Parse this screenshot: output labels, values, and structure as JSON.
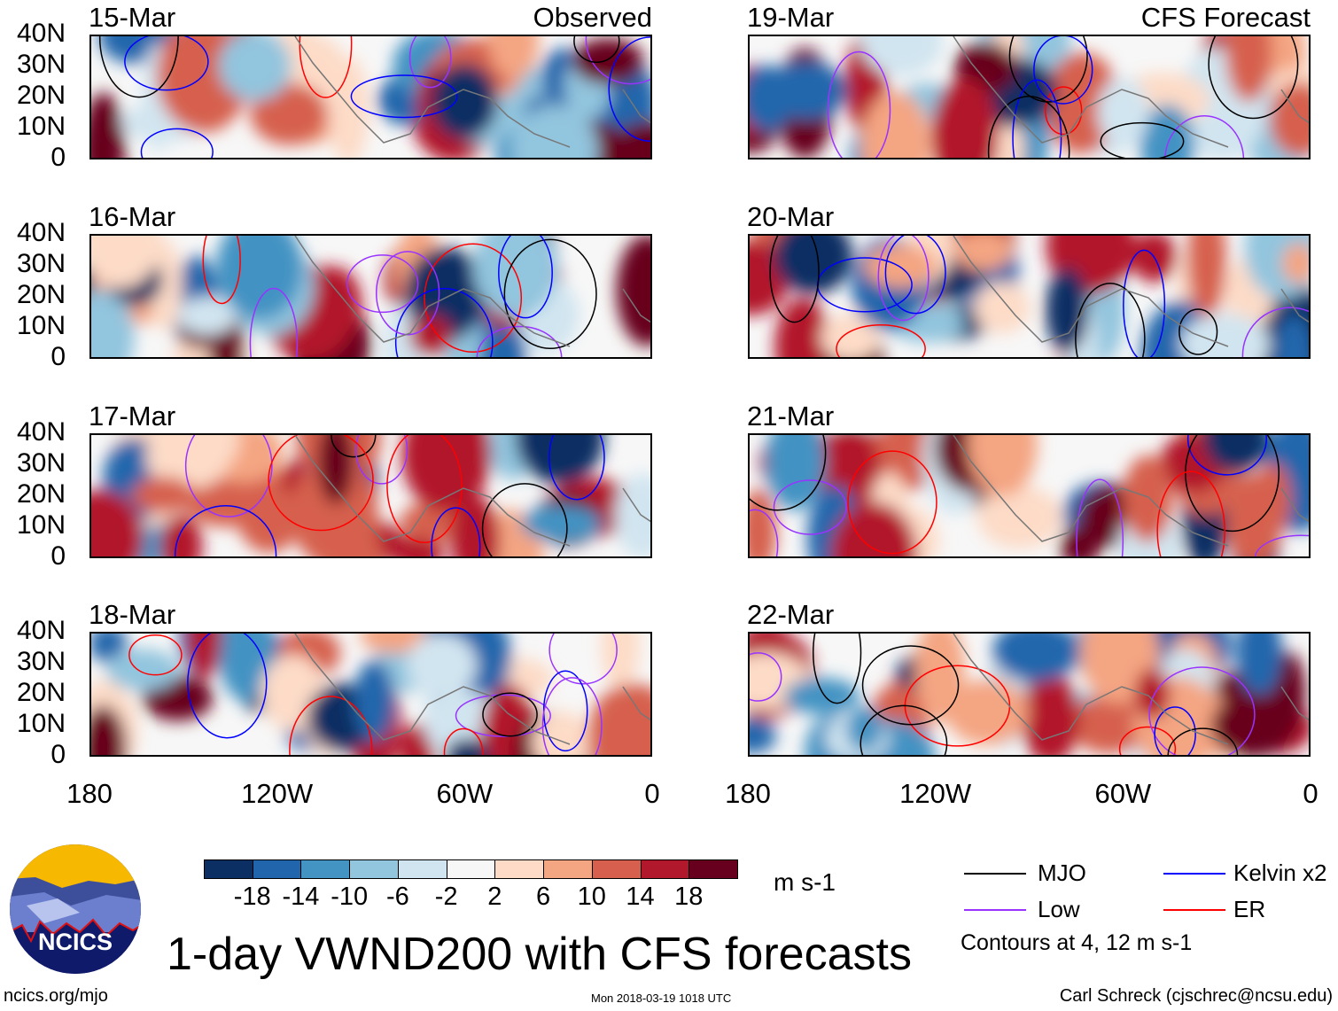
{
  "chart_data": {
    "type": "heatmap",
    "title": "1-day VWND200 with CFS forecasts",
    "units": "m s-1",
    "left_column_label": "Observed",
    "right_column_label": "CFS Forecast",
    "panels": [
      {
        "date": "15-Mar",
        "column": "Observed"
      },
      {
        "date": "16-Mar",
        "column": "Observed"
      },
      {
        "date": "17-Mar",
        "column": "Observed"
      },
      {
        "date": "18-Mar",
        "column": "Observed"
      },
      {
        "date": "19-Mar",
        "column": "CFS Forecast"
      },
      {
        "date": "20-Mar",
        "column": "CFS Forecast"
      },
      {
        "date": "21-Mar",
        "column": "CFS Forecast"
      },
      {
        "date": "22-Mar",
        "column": "CFS Forecast"
      }
    ],
    "y_ticks": [
      "40N",
      "30N",
      "20N",
      "10N",
      "0"
    ],
    "x_ticks": [
      "180",
      "120W",
      "60W",
      "0"
    ],
    "ylim": [
      0,
      40
    ],
    "xlim": [
      -180,
      0
    ],
    "colorbar": {
      "levels": [
        "-18",
        "-14",
        "-10",
        "-6",
        "-2",
        "2",
        "6",
        "10",
        "14",
        "18"
      ],
      "colors": [
        "#0b2f63",
        "#2166ac",
        "#4393c3",
        "#92c5de",
        "#d1e5f0",
        "#f7f7f7",
        "#fddbc7",
        "#f4a582",
        "#d6604d",
        "#b2182b",
        "#67001f"
      ]
    },
    "legend": [
      {
        "label": "MJO",
        "color": "#000000"
      },
      {
        "label": "Kelvin x2",
        "color": "#0000ff"
      },
      {
        "label": "Low",
        "color": "#9933ff"
      },
      {
        "label": "ER",
        "color": "#ff0000"
      }
    ],
    "contour_note": "Contours at 4, 12 m s-1"
  },
  "logo_text": "NCICS",
  "footer": {
    "url": "ncics.org/mjo",
    "timestamp": "Mon 2018-03-19 1018 UTC",
    "author": "Carl Schreck (cjschrec@ncsu.edu)"
  }
}
